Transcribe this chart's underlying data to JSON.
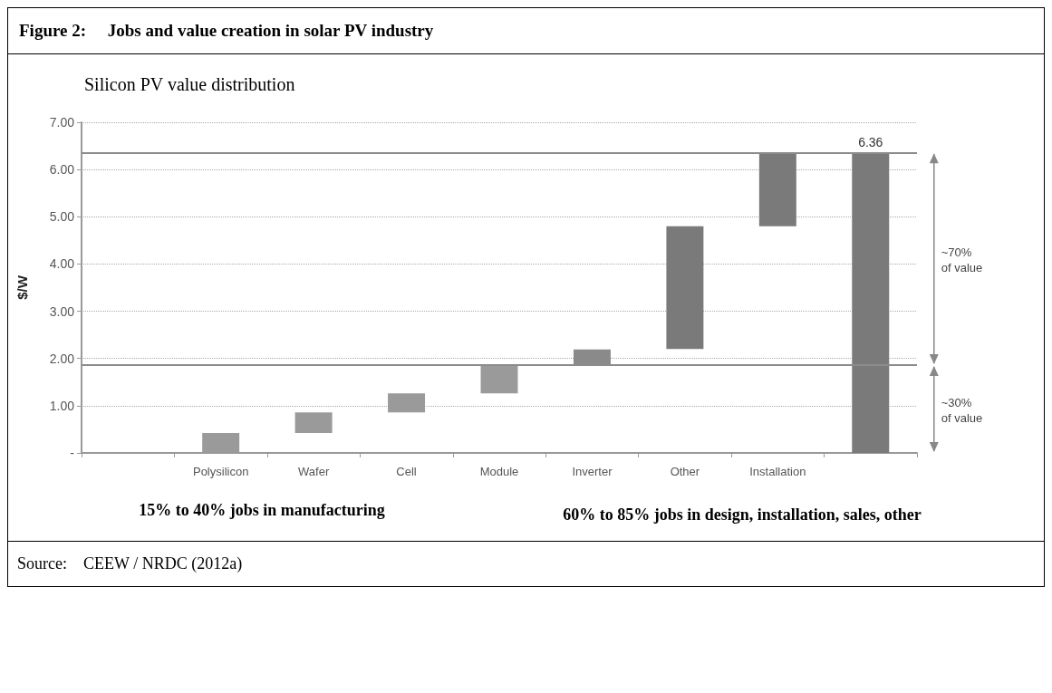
{
  "chart_data": {
    "type": "bar",
    "title": "Figure 2:     Jobs and value creation in solar PV industry",
    "subtitle": "Silicon PV value distribution",
    "ylabel": "$/W",
    "categories": [
      null,
      "Polysilicon",
      "Wafer",
      "Cell",
      "Module",
      "Inverter",
      "Other",
      "Installation",
      null
    ],
    "base": [
      null,
      0,
      0.42,
      0.86,
      1.26,
      1.86,
      2.2,
      4.8,
      0
    ],
    "values": [
      null,
      0.42,
      0.44,
      0.4,
      0.6,
      0.33,
      2.6,
      1.56,
      6.36
    ],
    "value_labels": [
      null,
      null,
      null,
      null,
      null,
      null,
      null,
      null,
      "6.36"
    ],
    "colors": [
      null,
      "#9a9a9a",
      "#9a9a9a",
      "#9a9a9a",
      "#9a9a9a",
      "#8a8a8a",
      "#7a7a7a",
      "#7a7a7a",
      "#7a7a7a"
    ],
    "ylim": [
      0,
      7
    ],
    "yticks": [
      {
        "value": 0,
        "label": "-"
      },
      {
        "value": 1,
        "label": "1.00"
      },
      {
        "value": 2,
        "label": "2.00"
      },
      {
        "value": 3,
        "label": "3.00"
      },
      {
        "value": 4,
        "label": "4.00"
      },
      {
        "value": 5,
        "label": "5.00"
      },
      {
        "value": 6,
        "label": "6.00"
      },
      {
        "value": 7,
        "label": "7.00"
      }
    ],
    "grid": "y",
    "ref_lines": [
      {
        "axis": "y",
        "value": 1.86,
        "label": null,
        "color": "#8c8c8c"
      },
      {
        "axis": "y",
        "value": 6.36,
        "label": null,
        "color": "#8c8c8c"
      }
    ],
    "annotations": [
      "~70%\nof value",
      "~30%\nof value",
      "15% to 40% jobs in manufacturing",
      "60% to 85% jobs in design, installation, sales, other",
      "Source:    CEEW / NRDC (2012a)"
    ]
  }
}
